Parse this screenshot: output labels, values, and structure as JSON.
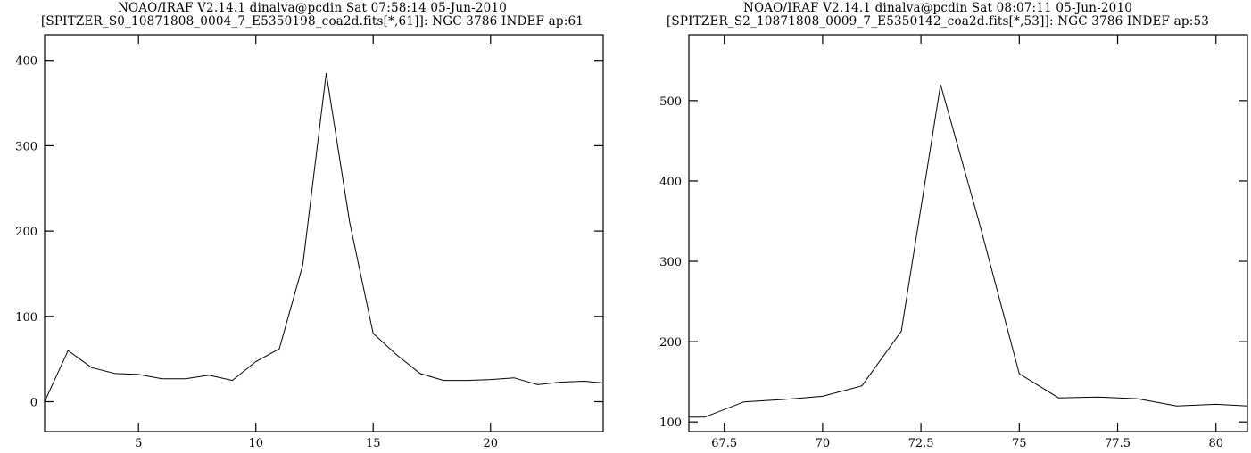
{
  "chart_data": [
    {
      "type": "line",
      "title": "NOAO/IRAF V2.14.1 dinalva@pcdin Sat 07:58:14 05-Jun-2010",
      "subtitle": "[SPITZER_S0_10871808_0004_7_E5350198_coa2d.fits[*,61]]: NGC 3786 INDEF ap:61",
      "xlabel": "",
      "ylabel": "",
      "xlim": [
        1,
        24.8
      ],
      "ylim": [
        -35,
        430
      ],
      "xticks": [
        5,
        10,
        15,
        20
      ],
      "yticks": [
        0,
        100,
        200,
        300,
        400
      ],
      "x": [
        1,
        2,
        3,
        4,
        5,
        6,
        7,
        8,
        9,
        10,
        11,
        12,
        13,
        14,
        15,
        16,
        17,
        18,
        19,
        20,
        21,
        22,
        23,
        24,
        24.8
      ],
      "y": [
        0,
        60,
        40,
        33,
        32,
        27,
        27,
        31,
        25,
        47,
        62,
        160,
        385,
        210,
        80,
        55,
        33,
        25,
        25,
        26,
        28,
        20,
        23,
        24,
        22
      ],
      "grid": false,
      "line_color": "#000000"
    },
    {
      "type": "line",
      "title": "NOAO/IRAF V2.14.1 dinalva@pcdin Sat 08:07:11 05-Jun-2010",
      "subtitle": "[SPITZER_S2_10871808_0009_7_E5350142_coa2d.fits[*,53]]: NGC 3786 INDEF ap:53",
      "xlabel": "",
      "ylabel": "",
      "xlim": [
        66.6,
        80.8
      ],
      "ylim": [
        88,
        582
      ],
      "xticks": [
        67.5,
        70,
        72.5,
        75,
        77.5,
        80
      ],
      "xticklabels": [
        "67.5",
        "70",
        "72.5",
        "75",
        "77.5",
        "80"
      ],
      "yticks": [
        100,
        200,
        300,
        400,
        500
      ],
      "x": [
        66.6,
        67,
        68,
        69,
        70,
        71,
        72,
        73,
        74,
        75,
        76,
        77,
        78,
        79,
        80,
        80.8
      ],
      "y": [
        106,
        106,
        125,
        128,
        132,
        145,
        213,
        520,
        345,
        160,
        130,
        131,
        129,
        120,
        122,
        120
      ],
      "grid": false,
      "line_color": "#000000"
    }
  ]
}
